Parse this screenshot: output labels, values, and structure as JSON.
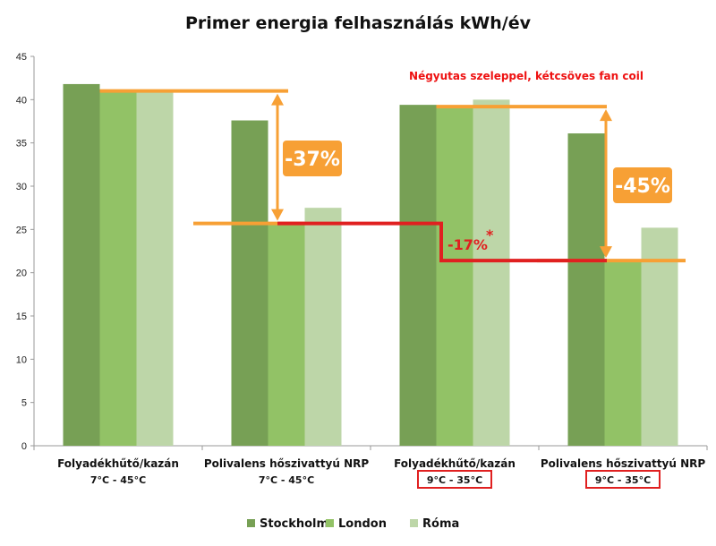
{
  "chart_data": {
    "type": "bar",
    "title": "Primer energia felhasználás kWh/év",
    "xlabel": "",
    "ylabel": "",
    "ylim": [
      0,
      45
    ],
    "yticks": [
      0,
      5,
      10,
      15,
      20,
      25,
      30,
      35,
      40,
      45
    ],
    "grid": false,
    "legend": "bottom",
    "categories": [
      {
        "label": "Folyadékhűtő/kazán",
        "sub": "7°C - 45°C",
        "boxed": false
      },
      {
        "label": "Polivalens hőszivattyú NRP",
        "sub": "7°C - 45°C",
        "boxed": false
      },
      {
        "label": "Folyadékhűtő/kazán",
        "sub": "9°C - 35°C",
        "boxed": true
      },
      {
        "label": "Polivalens hőszivattyú NRP",
        "sub": "9°C - 35°C",
        "boxed": true
      }
    ],
    "series": [
      {
        "name": "Stockholm",
        "color": "#77a055",
        "values": [
          41.8,
          37.6,
          39.4,
          36.1
        ]
      },
      {
        "name": "London",
        "color": "#92c266",
        "values": [
          41.0,
          25.7,
          39.2,
          21.4
        ]
      },
      {
        "name": "Róma",
        "color": "#bdd6a8",
        "values": [
          41.0,
          27.5,
          40.0,
          25.2
        ]
      }
    ],
    "annotations": {
      "note": "Négyutas szeleppel, kétcsöves fan coil",
      "note_color": "#ee1111",
      "reduction_left": "-37%",
      "reduction_right": "-45%",
      "reduction_mid": "-17%",
      "reduction_mid_mark": "*",
      "orange": "#f7a035",
      "red": "#e02020",
      "box_color": "#e02020"
    }
  }
}
